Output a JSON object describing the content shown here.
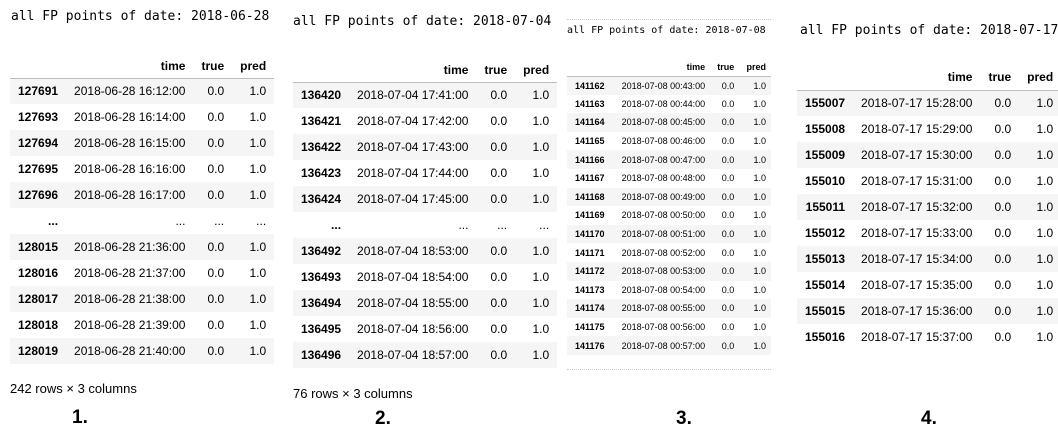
{
  "panels": [
    {
      "heading": "all FP points of date: 2018-06-28",
      "columns": [
        "time",
        "true",
        "pred"
      ],
      "rows": [
        [
          "127691",
          "2018-06-28 16:12:00",
          "0.0",
          "1.0"
        ],
        [
          "127693",
          "2018-06-28 16:14:00",
          "0.0",
          "1.0"
        ],
        [
          "127694",
          "2018-06-28 16:15:00",
          "0.0",
          "1.0"
        ],
        [
          "127695",
          "2018-06-28 16:16:00",
          "0.0",
          "1.0"
        ],
        [
          "127696",
          "2018-06-28 16:17:00",
          "0.0",
          "1.0"
        ],
        [
          "...",
          "...",
          "...",
          "..."
        ],
        [
          "128015",
          "2018-06-28 21:36:00",
          "0.0",
          "1.0"
        ],
        [
          "128016",
          "2018-06-28 21:37:00",
          "0.0",
          "1.0"
        ],
        [
          "128017",
          "2018-06-28 21:38:00",
          "0.0",
          "1.0"
        ],
        [
          "128018",
          "2018-06-28 21:39:00",
          "0.0",
          "1.0"
        ],
        [
          "128019",
          "2018-06-28 21:40:00",
          "0.0",
          "1.0"
        ]
      ],
      "shape": "242 rows × 3 columns",
      "caption": "1."
    },
    {
      "heading": "all FP points of date: 2018-07-04",
      "columns": [
        "time",
        "true",
        "pred"
      ],
      "rows": [
        [
          "136420",
          "2018-07-04 17:41:00",
          "0.0",
          "1.0"
        ],
        [
          "136421",
          "2018-07-04 17:42:00",
          "0.0",
          "1.0"
        ],
        [
          "136422",
          "2018-07-04 17:43:00",
          "0.0",
          "1.0"
        ],
        [
          "136423",
          "2018-07-04 17:44:00",
          "0.0",
          "1.0"
        ],
        [
          "136424",
          "2018-07-04 17:45:00",
          "0.0",
          "1.0"
        ],
        [
          "...",
          "...",
          "...",
          "..."
        ],
        [
          "136492",
          "2018-07-04 18:53:00",
          "0.0",
          "1.0"
        ],
        [
          "136493",
          "2018-07-04 18:54:00",
          "0.0",
          "1.0"
        ],
        [
          "136494",
          "2018-07-04 18:55:00",
          "0.0",
          "1.0"
        ],
        [
          "136495",
          "2018-07-04 18:56:00",
          "0.0",
          "1.0"
        ],
        [
          "136496",
          "2018-07-04 18:57:00",
          "0.0",
          "1.0"
        ]
      ],
      "shape": "76 rows × 3 columns",
      "caption": "2."
    },
    {
      "heading": "all FP points of date: 2018-07-08",
      "columns": [
        "time",
        "true",
        "pred"
      ],
      "rows": [
        [
          "141162",
          "2018-07-08 00:43:00",
          "0.0",
          "1.0"
        ],
        [
          "141163",
          "2018-07-08 00:44:00",
          "0.0",
          "1.0"
        ],
        [
          "141164",
          "2018-07-08 00:45:00",
          "0.0",
          "1.0"
        ],
        [
          "141165",
          "2018-07-08 00:46:00",
          "0.0",
          "1.0"
        ],
        [
          "141166",
          "2018-07-08 00:47:00",
          "0.0",
          "1.0"
        ],
        [
          "141167",
          "2018-07-08 00:48:00",
          "0.0",
          "1.0"
        ],
        [
          "141168",
          "2018-07-08 00:49:00",
          "0.0",
          "1.0"
        ],
        [
          "141169",
          "2018-07-08 00:50:00",
          "0.0",
          "1.0"
        ],
        [
          "141170",
          "2018-07-08 00:51:00",
          "0.0",
          "1.0"
        ],
        [
          "141171",
          "2018-07-08 00:52:00",
          "0.0",
          "1.0"
        ],
        [
          "141172",
          "2018-07-08 00:53:00",
          "0.0",
          "1.0"
        ],
        [
          "141173",
          "2018-07-08 00:54:00",
          "0.0",
          "1.0"
        ],
        [
          "141174",
          "2018-07-08 00:55:00",
          "0.0",
          "1.0"
        ],
        [
          "141175",
          "2018-07-08 00:56:00",
          "0.0",
          "1.0"
        ],
        [
          "141176",
          "2018-07-08 00:57:00",
          "0.0",
          "1.0"
        ]
      ],
      "shape": "",
      "caption": "3."
    },
    {
      "heading": "all FP points of date: 2018-07-17",
      "columns": [
        "time",
        "true",
        "pred"
      ],
      "rows": [
        [
          "155007",
          "2018-07-17 15:28:00",
          "0.0",
          "1.0"
        ],
        [
          "155008",
          "2018-07-17 15:29:00",
          "0.0",
          "1.0"
        ],
        [
          "155009",
          "2018-07-17 15:30:00",
          "0.0",
          "1.0"
        ],
        [
          "155010",
          "2018-07-17 15:31:00",
          "0.0",
          "1.0"
        ],
        [
          "155011",
          "2018-07-17 15:32:00",
          "0.0",
          "1.0"
        ],
        [
          "155012",
          "2018-07-17 15:33:00",
          "0.0",
          "1.0"
        ],
        [
          "155013",
          "2018-07-17 15:34:00",
          "0.0",
          "1.0"
        ],
        [
          "155014",
          "2018-07-17 15:35:00",
          "0.0",
          "1.0"
        ],
        [
          "155015",
          "2018-07-17 15:36:00",
          "0.0",
          "1.0"
        ],
        [
          "155016",
          "2018-07-17 15:37:00",
          "0.0",
          "1.0"
        ]
      ],
      "shape": "",
      "caption": "4."
    }
  ]
}
